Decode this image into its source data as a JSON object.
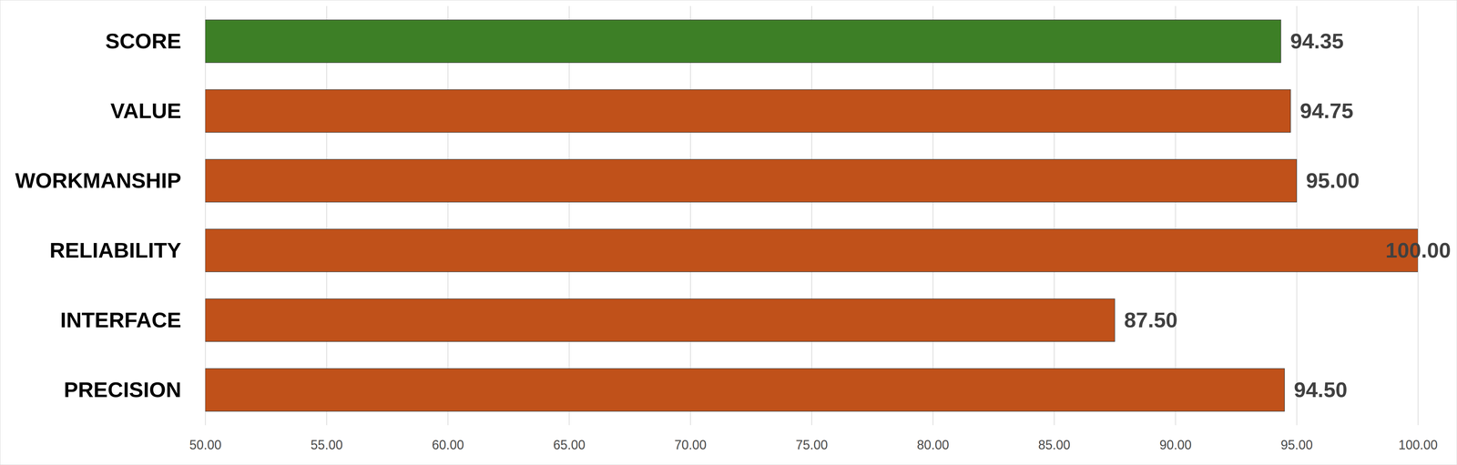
{
  "chart_data": {
    "type": "bar",
    "orientation": "horizontal",
    "categories": [
      "SCORE",
      "VALUE",
      "WORKMANSHIP",
      "RELIABILITY",
      "INTERFACE",
      "PRECISION"
    ],
    "values": [
      94.35,
      94.75,
      95.0,
      100.0,
      87.5,
      94.5
    ],
    "value_labels": [
      "94.35",
      "94.75",
      "95.00",
      "100.00",
      "87.50",
      "94.50"
    ],
    "colors": [
      "#3d7f26",
      "#c0511a",
      "#c0511a",
      "#c0511a",
      "#c0511a",
      "#c0511a"
    ],
    "xlim": [
      50,
      100
    ],
    "xticks": [
      {
        "value": 50,
        "label": "50.00"
      },
      {
        "value": 55,
        "label": "55.00"
      },
      {
        "value": 60,
        "label": "60.00"
      },
      {
        "value": 65,
        "label": "65.00"
      },
      {
        "value": 70,
        "label": "70.00"
      },
      {
        "value": 75,
        "label": "75.00"
      },
      {
        "value": 80,
        "label": "80.00"
      },
      {
        "value": 85,
        "label": "85.00"
      },
      {
        "value": 90,
        "label": "90.00"
      },
      {
        "value": 95,
        "label": "95.00"
      },
      {
        "value": 100,
        "label": "100.00"
      }
    ],
    "grid": true,
    "data_labels": true
  }
}
